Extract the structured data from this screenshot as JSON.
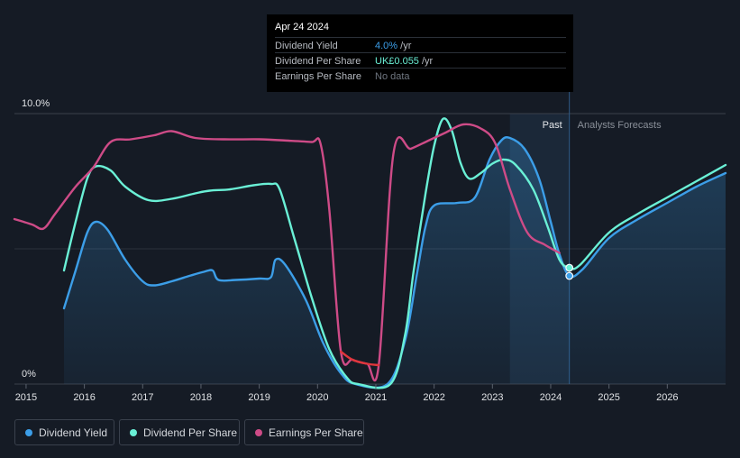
{
  "tooltip": {
    "date": "Apr 24 2024",
    "rows": [
      {
        "label": "Dividend Yield",
        "value": "4.0%",
        "unit": " /yr",
        "color": "#3c9ee8"
      },
      {
        "label": "Dividend Per Share",
        "value": "UK£0.055",
        "unit": " /yr",
        "color": "#6af0d6"
      },
      {
        "label": "Earnings Per Share",
        "value": "No data",
        "unit": "",
        "color": "#6f7680"
      }
    ]
  },
  "chart_data": {
    "type": "line",
    "ylim": [
      0,
      10
    ],
    "xlim": [
      2014.8,
      2027.0
    ],
    "y_tick_labels": [
      "10.0%",
      "0%"
    ],
    "x_tick_labels": [
      "2015",
      "2016",
      "2017",
      "2018",
      "2019",
      "2020",
      "2021",
      "2022",
      "2023",
      "2024",
      "2025",
      "2026"
    ],
    "past_label": "Past",
    "forecast_label": "Analysts Forecasts",
    "forecast_start": 2024.32,
    "series": [
      {
        "name": "Dividend Yield",
        "color": "#3c9ee8",
        "area": true,
        "points": [
          [
            2015.65,
            2.8
          ],
          [
            2015.85,
            4.2
          ],
          [
            2016.05,
            5.6
          ],
          [
            2016.2,
            6.0
          ],
          [
            2016.4,
            5.7
          ],
          [
            2016.7,
            4.6
          ],
          [
            2017.0,
            3.8
          ],
          [
            2017.2,
            3.65
          ],
          [
            2017.5,
            3.8
          ],
          [
            2017.8,
            4.0
          ],
          [
            2018.05,
            4.15
          ],
          [
            2018.2,
            4.2
          ],
          [
            2018.3,
            3.85
          ],
          [
            2018.6,
            3.85
          ],
          [
            2019.0,
            3.9
          ],
          [
            2019.2,
            3.95
          ],
          [
            2019.28,
            4.6
          ],
          [
            2019.45,
            4.4
          ],
          [
            2019.8,
            3.1
          ],
          [
            2020.1,
            1.5
          ],
          [
            2020.4,
            0.4
          ],
          [
            2020.65,
            0.0
          ],
          [
            2021.2,
            0.0
          ],
          [
            2021.5,
            1.6
          ],
          [
            2021.7,
            4.0
          ],
          [
            2021.85,
            5.8
          ],
          [
            2022.0,
            6.6
          ],
          [
            2022.4,
            6.7
          ],
          [
            2022.7,
            6.9
          ],
          [
            2022.95,
            8.3
          ],
          [
            2023.15,
            9.0
          ],
          [
            2023.3,
            9.1
          ],
          [
            2023.55,
            8.7
          ],
          [
            2023.8,
            7.6
          ],
          [
            2024.0,
            6.0
          ],
          [
            2024.15,
            4.8
          ],
          [
            2024.32,
            4.0
          ],
          [
            2024.55,
            4.25
          ],
          [
            2025.0,
            5.4
          ],
          [
            2025.5,
            6.1
          ],
          [
            2026.0,
            6.7
          ],
          [
            2026.5,
            7.3
          ],
          [
            2027.0,
            7.8
          ]
        ]
      },
      {
        "name": "Dividend Per Share",
        "color": "#6af0d6",
        "area": false,
        "points": [
          [
            2015.65,
            4.2
          ],
          [
            2015.85,
            6.0
          ],
          [
            2016.05,
            7.6
          ],
          [
            2016.2,
            8.05
          ],
          [
            2016.45,
            7.9
          ],
          [
            2016.7,
            7.3
          ],
          [
            2017.1,
            6.8
          ],
          [
            2017.5,
            6.85
          ],
          [
            2017.9,
            7.05
          ],
          [
            2018.15,
            7.15
          ],
          [
            2018.5,
            7.2
          ],
          [
            2018.9,
            7.35
          ],
          [
            2019.2,
            7.4
          ],
          [
            2019.35,
            7.2
          ],
          [
            2019.6,
            5.4
          ],
          [
            2019.9,
            3.2
          ],
          [
            2020.2,
            1.3
          ],
          [
            2020.5,
            0.25
          ],
          [
            2020.7,
            0.0
          ],
          [
            2021.25,
            0.0
          ],
          [
            2021.5,
            1.8
          ],
          [
            2021.65,
            4.2
          ],
          [
            2021.85,
            7.0
          ],
          [
            2022.0,
            8.8
          ],
          [
            2022.15,
            9.8
          ],
          [
            2022.3,
            9.4
          ],
          [
            2022.45,
            8.2
          ],
          [
            2022.6,
            7.6
          ],
          [
            2022.8,
            7.8
          ],
          [
            2023.0,
            8.15
          ],
          [
            2023.2,
            8.3
          ],
          [
            2023.4,
            8.1
          ],
          [
            2023.7,
            7.2
          ],
          [
            2023.95,
            5.8
          ],
          [
            2024.15,
            4.6
          ],
          [
            2024.32,
            4.3
          ],
          [
            2024.5,
            4.4
          ],
          [
            2025.0,
            5.6
          ],
          [
            2025.5,
            6.3
          ],
          [
            2026.0,
            6.9
          ],
          [
            2026.5,
            7.5
          ],
          [
            2027.0,
            8.1
          ]
        ]
      },
      {
        "name": "Earnings Per Share",
        "color": "#ce4b87",
        "area": false,
        "points": [
          [
            2014.8,
            6.1
          ],
          [
            2015.1,
            5.9
          ],
          [
            2015.3,
            5.75
          ],
          [
            2015.5,
            6.3
          ],
          [
            2015.85,
            7.3
          ],
          [
            2016.15,
            8.0
          ],
          [
            2016.45,
            8.95
          ],
          [
            2016.8,
            9.05
          ],
          [
            2017.2,
            9.2
          ],
          [
            2017.5,
            9.35
          ],
          [
            2017.9,
            9.1
          ],
          [
            2018.4,
            9.05
          ],
          [
            2019.0,
            9.05
          ],
          [
            2019.5,
            9.0
          ],
          [
            2019.9,
            8.95
          ],
          [
            2020.05,
            8.9
          ],
          [
            2020.2,
            6.5
          ],
          [
            2020.4,
            1.2
          ],
          [
            2020.6,
            0.9
          ],
          [
            2020.85,
            0.75
          ],
          [
            2021.05,
            0.7
          ],
          [
            2021.3,
            8.5
          ],
          [
            2021.6,
            8.7
          ],
          [
            2021.9,
            9.0
          ],
          [
            2022.2,
            9.3
          ],
          [
            2022.5,
            9.6
          ],
          [
            2022.8,
            9.45
          ],
          [
            2023.05,
            8.9
          ],
          [
            2023.3,
            7.2
          ],
          [
            2023.6,
            5.6
          ],
          [
            2023.9,
            5.15
          ],
          [
            2024.15,
            4.85
          ]
        ]
      }
    ]
  },
  "legend": [
    {
      "label": "Dividend Yield",
      "color": "#3c9ee8"
    },
    {
      "label": "Dividend Per Share",
      "color": "#6af0d6"
    },
    {
      "label": "Earnings Per Share",
      "color": "#ce4b87"
    }
  ]
}
